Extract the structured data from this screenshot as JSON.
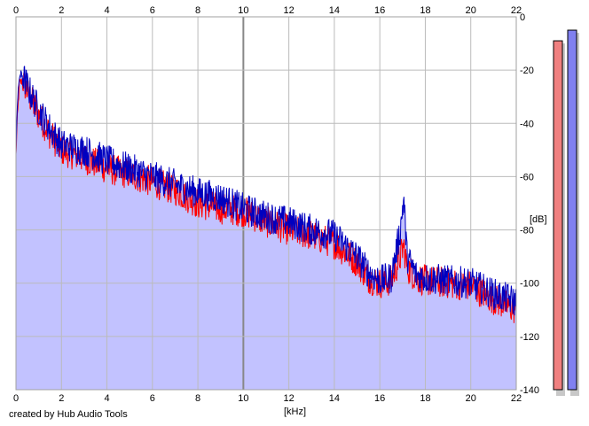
{
  "app": {
    "credit": "created by Hub Audio Tools"
  },
  "colors": {
    "background": "#ffffff",
    "fill": "#c2c2ff",
    "channel_left": "#ff0000",
    "channel_right": "#0000c0",
    "grid": "#bbbbbb",
    "grid_major": "#888888",
    "meter_left": "#f08080",
    "meter_right": "#8080f0"
  },
  "meters": {
    "left_level_db": -9,
    "right_level_db": -5,
    "scale_db": [
      -140,
      0
    ]
  },
  "chart_data": {
    "type": "line",
    "xlabel": "[kHz]",
    "ylabel": "[dB]",
    "xlim": [
      0,
      22
    ],
    "ylim": [
      -140,
      0
    ],
    "x_ticks": [
      "0",
      "2",
      "4",
      "6",
      "8",
      "10",
      "12",
      "14",
      "16",
      "18",
      "20",
      "22"
    ],
    "y_ticks": [
      "0",
      "-20",
      "-40",
      "-60",
      "-80",
      "-100",
      "-120",
      "-140"
    ],
    "grid": true,
    "series": [
      {
        "color": "#ff0000",
        "points": [
          [
            0,
            -52
          ],
          [
            0.05,
            -40
          ],
          [
            0.15,
            -25
          ],
          [
            0.3,
            -24
          ],
          [
            0.6,
            -30
          ],
          [
            1,
            -37
          ],
          [
            1.5,
            -44
          ],
          [
            2,
            -50
          ],
          [
            3,
            -53
          ],
          [
            4,
            -57
          ],
          [
            5,
            -59
          ],
          [
            6,
            -62
          ],
          [
            7,
            -65
          ],
          [
            8,
            -70
          ],
          [
            9,
            -72
          ],
          [
            10,
            -73
          ],
          [
            11,
            -77
          ],
          [
            12,
            -80
          ],
          [
            13,
            -82
          ],
          [
            14,
            -85
          ],
          [
            15,
            -92
          ],
          [
            15.5,
            -98
          ],
          [
            16,
            -100
          ],
          [
            16.5,
            -99
          ],
          [
            16.9,
            -90
          ],
          [
            17.05,
            -86
          ],
          [
            17.2,
            -94
          ],
          [
            17.6,
            -98
          ],
          [
            18,
            -99
          ],
          [
            19,
            -100
          ],
          [
            20,
            -101
          ],
          [
            21,
            -106
          ],
          [
            22,
            -110
          ]
        ]
      },
      {
        "color": "#0000c0",
        "points": [
          [
            0,
            -50
          ],
          [
            0.05,
            -35
          ],
          [
            0.15,
            -22
          ],
          [
            0.3,
            -22
          ],
          [
            0.6,
            -28
          ],
          [
            1,
            -35
          ],
          [
            1.5,
            -42
          ],
          [
            2,
            -48
          ],
          [
            3,
            -50
          ],
          [
            4,
            -54
          ],
          [
            5,
            -57
          ],
          [
            6,
            -60
          ],
          [
            7,
            -63
          ],
          [
            8,
            -66
          ],
          [
            9,
            -68
          ],
          [
            10,
            -72
          ],
          [
            11,
            -75
          ],
          [
            12,
            -77
          ],
          [
            13,
            -80
          ],
          [
            14,
            -82
          ],
          [
            15,
            -90
          ],
          [
            15.5,
            -96
          ],
          [
            16,
            -99
          ],
          [
            16.5,
            -98
          ],
          [
            16.9,
            -80
          ],
          [
            17.05,
            -68
          ],
          [
            17.2,
            -90
          ],
          [
            17.6,
            -97
          ],
          [
            18,
            -98
          ],
          [
            19,
            -99
          ],
          [
            20,
            -100
          ],
          [
            21,
            -104
          ],
          [
            22,
            -107
          ]
        ]
      }
    ]
  }
}
